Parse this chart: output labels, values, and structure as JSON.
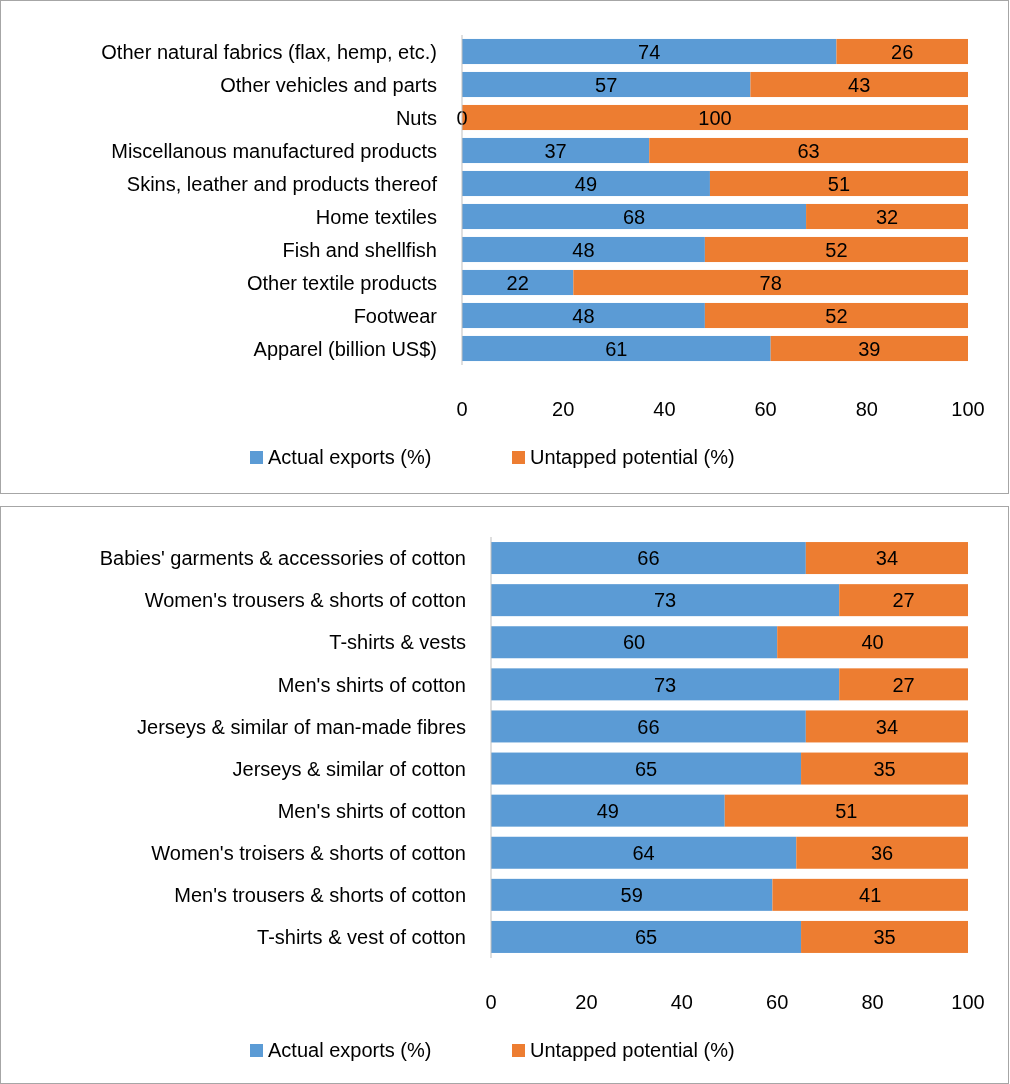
{
  "chart_data": [
    {
      "type": "bar",
      "orientation": "horizontal",
      "stacked": true,
      "categories": [
        "Other natural fabrics (flax, hemp, etc.)",
        "Other vehicles and parts",
        "Nuts",
        "Miscellanous manufactured products",
        "Skins, leather and products thereof",
        "Home textiles",
        "Fish and shellfish",
        "Other textile products",
        "Footwear",
        "Apparel (billion US$)"
      ],
      "series": [
        {
          "name": "Actual exports (%)",
          "color": "#5b9bd5",
          "values": [
            74,
            57,
            0,
            37,
            49,
            68,
            48,
            22,
            48,
            61
          ]
        },
        {
          "name": "Untapped potential (%)",
          "color": "#ed7d31",
          "values": [
            26,
            43,
            100,
            63,
            51,
            32,
            52,
            78,
            52,
            39
          ]
        }
      ],
      "xlim": [
        0,
        100
      ],
      "xticks": [
        0,
        20,
        40,
        60,
        80,
        100
      ],
      "data_labels": true,
      "legend": "bottom",
      "grid": false
    },
    {
      "type": "bar",
      "orientation": "horizontal",
      "stacked": true,
      "categories": [
        "Babies' garments & accessories of cotton",
        "Women's trousers & shorts of cotton",
        "T-shirts & vests",
        "Men's shirts of cotton",
        "Jerseys & similar of man-made fibres",
        "Jerseys & similar of cotton",
        "Men's shirts of cotton",
        "Women's troisers & shorts of cotton",
        "Men's trousers & shorts of cotton",
        "T-shirts & vest of cotton"
      ],
      "series": [
        {
          "name": "Actual exports (%)",
          "color": "#5b9bd5",
          "values": [
            66,
            73,
            60,
            73,
            66,
            65,
            49,
            64,
            59,
            65
          ]
        },
        {
          "name": "Untapped potential (%)",
          "color": "#ed7d31",
          "values": [
            34,
            27,
            40,
            27,
            34,
            35,
            51,
            36,
            41,
            35
          ]
        }
      ],
      "xlim": [
        0,
        100
      ],
      "xticks": [
        0,
        20,
        40,
        60,
        80,
        100
      ],
      "data_labels": true,
      "legend": "bottom",
      "grid": false
    }
  ]
}
